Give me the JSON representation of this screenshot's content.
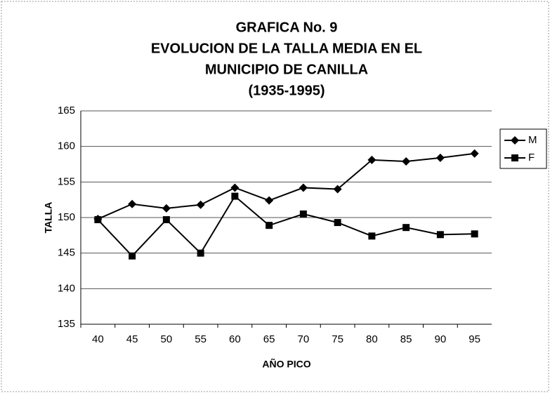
{
  "chart_data": {
    "type": "line",
    "title": [
      "GRAFICA No. 9",
      "EVOLUCION DE LA TALLA MEDIA EN EL",
      "MUNICIPIO DE CANILLA",
      "(1935-1995)"
    ],
    "xlabel": "AÑO PICO",
    "ylabel": "TALLA",
    "categories": [
      40,
      45,
      50,
      55,
      60,
      65,
      70,
      75,
      80,
      85,
      90,
      95
    ],
    "series": [
      {
        "name": "M",
        "color": "#000000",
        "marker": "diamond",
        "values": [
          149.8,
          151.9,
          151.3,
          151.8,
          154.2,
          152.4,
          154.2,
          154.0,
          158.1,
          157.9,
          158.4,
          159.0
        ]
      },
      {
        "name": "F",
        "color": "#000000",
        "marker": "square",
        "values": [
          149.7,
          144.6,
          149.7,
          145.0,
          153.0,
          148.9,
          150.5,
          149.3,
          147.4,
          148.6,
          147.6,
          147.7
        ]
      }
    ],
    "ylim": [
      135,
      165
    ],
    "yticks": [
      135,
      140,
      145,
      150,
      155,
      160,
      165
    ],
    "grid": true,
    "legend": "right"
  }
}
